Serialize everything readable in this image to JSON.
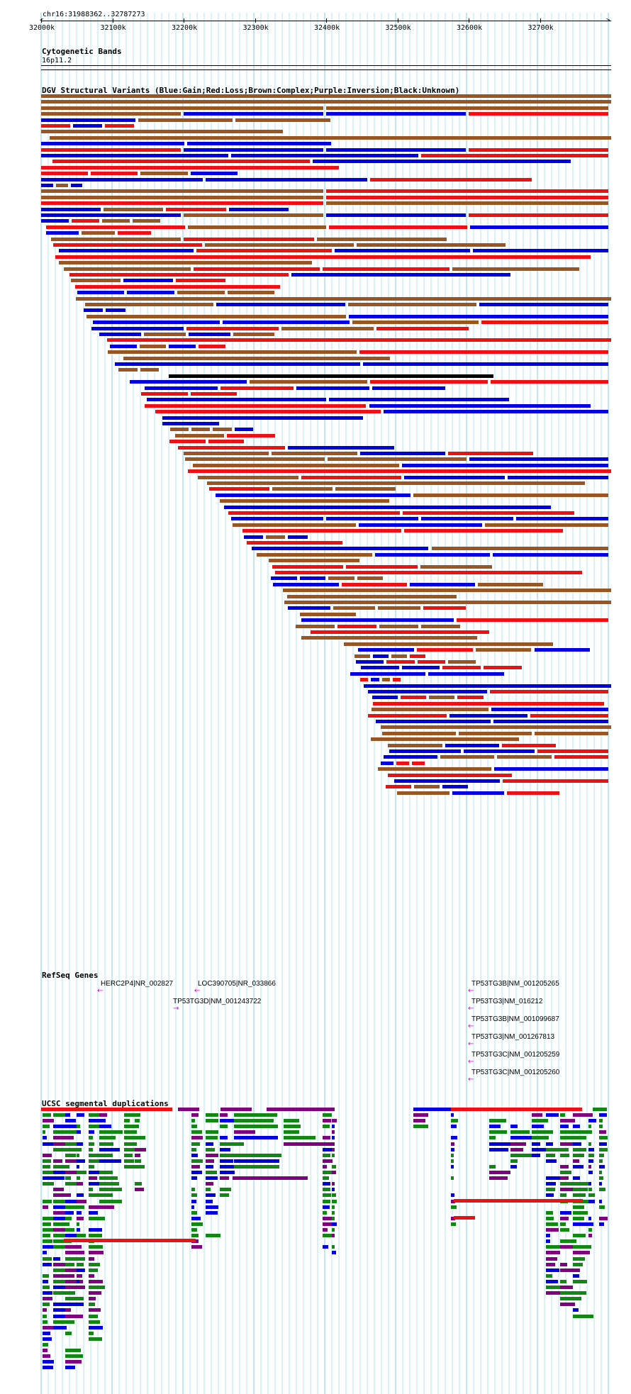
{
  "location": "chr16:31988362..32787273",
  "ruler": {
    "ticks": [
      "32000k",
      "32100k",
      "32200k",
      "32300k",
      "32400k",
      "32500k",
      "32600k",
      "32700k"
    ]
  },
  "tracks": {
    "cytoband": {
      "title": "Cytogenetic Bands",
      "band": "16p11.2"
    },
    "dgv": {
      "title": "DGV Structural Variants (Blue:Gain;Red:Loss;Brown:Complex;Purple:Inversion;Black:Unknown)",
      "colors": {
        "gain": "#0000e0",
        "loss": "#ee1111",
        "complex": "#995522",
        "inversion": "#800080",
        "unknown": "#000000"
      }
    },
    "refseq": {
      "title": "RefSeq Genes",
      "genes": [
        {
          "label": "HERC2P4|NR_002827",
          "arrow": "←"
        },
        {
          "label": "LOC390705|NR_033866",
          "arrow": "←"
        },
        {
          "label": "TP53TG3D|NM_001243722",
          "arrow": "→"
        },
        {
          "label": "TP53TG3B|NM_001205265",
          "arrow": "←"
        },
        {
          "label": "TP53TG3|NM_016212",
          "arrow": "←"
        },
        {
          "label": "TP53TG3B|NM_001099687",
          "arrow": "←"
        },
        {
          "label": "TP53TG3|NM_001267813",
          "arrow": "←"
        },
        {
          "label": "TP53TG3C|NM_001205259",
          "arrow": "←"
        },
        {
          "label": "TP53TG3C|NM_001205260",
          "arrow": "←"
        }
      ],
      "color": "#e000e0"
    },
    "segdups": {
      "title": "UCSC segmental duplications",
      "colors": {
        "red": "#ee1111",
        "purple": "#800080",
        "green": "#118811",
        "blue": "#0000e0"
      }
    }
  }
}
